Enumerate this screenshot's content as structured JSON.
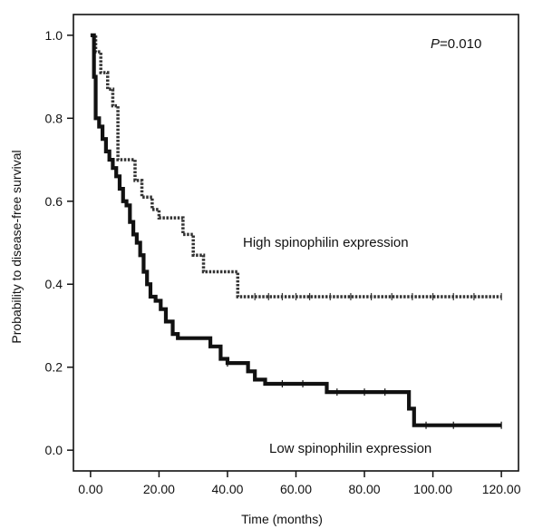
{
  "chart_data": {
    "type": "line",
    "title": "",
    "xlabel": "Time (months)",
    "ylabel": "Probability to disease-free survival",
    "xlim": [
      -5,
      125
    ],
    "ylim": [
      -0.05,
      1.05
    ],
    "x_ticks": [
      0,
      20,
      40,
      60,
      80,
      100,
      120
    ],
    "x_tick_labels": [
      "0.00",
      "20.00",
      "40.00",
      "60.00",
      "80.00",
      "100.00",
      "120.00"
    ],
    "y_ticks": [
      0.0,
      0.2,
      0.4,
      0.6,
      0.8,
      1.0
    ],
    "y_tick_labels": [
      "0.0",
      "0.2",
      "0.4",
      "0.6",
      "0.8",
      "1.0"
    ],
    "grid": false,
    "legend": "none",
    "annotations": {
      "p_value_prefix": "P",
      "p_value_rest": "=0.010",
      "high_label": "High spinophilin expression",
      "low_label": "Low spinophilin expression"
    },
    "series": [
      {
        "style": "dotted",
        "color": "#333333",
        "points": [
          [
            0.5,
            1.0
          ],
          [
            1.5,
            0.96
          ],
          [
            3,
            0.91
          ],
          [
            5,
            0.87
          ],
          [
            6.5,
            0.83
          ],
          [
            8,
            0.7
          ],
          [
            13,
            0.65
          ],
          [
            15,
            0.61
          ],
          [
            18,
            0.58
          ],
          [
            20,
            0.56
          ],
          [
            27,
            0.52
          ],
          [
            30,
            0.47
          ],
          [
            33,
            0.43
          ],
          [
            36,
            0.43
          ],
          [
            43,
            0.37
          ],
          [
            120,
            0.37
          ]
        ],
        "censor_x": [
          48,
          52,
          56,
          60,
          64,
          70,
          76,
          82,
          88,
          94,
          100,
          106,
          112,
          120
        ]
      },
      {
        "style": "solid",
        "color": "#111111",
        "points": [
          [
            0,
            1.0
          ],
          [
            1,
            0.9
          ],
          [
            1.5,
            0.8
          ],
          [
            2.5,
            0.78
          ],
          [
            3.5,
            0.75
          ],
          [
            4.5,
            0.72
          ],
          [
            5.5,
            0.7
          ],
          [
            6.5,
            0.68
          ],
          [
            7.5,
            0.66
          ],
          [
            8.5,
            0.63
          ],
          [
            9.5,
            0.6
          ],
          [
            10.5,
            0.59
          ],
          [
            11.5,
            0.55
          ],
          [
            12.5,
            0.52
          ],
          [
            13.5,
            0.5
          ],
          [
            14.5,
            0.47
          ],
          [
            15.5,
            0.43
          ],
          [
            16.5,
            0.4
          ],
          [
            17.5,
            0.37
          ],
          [
            19,
            0.36
          ],
          [
            20.5,
            0.34
          ],
          [
            22,
            0.31
          ],
          [
            24,
            0.28
          ],
          [
            25.5,
            0.27
          ],
          [
            35,
            0.25
          ],
          [
            38,
            0.22
          ],
          [
            40,
            0.21
          ],
          [
            46,
            0.19
          ],
          [
            48,
            0.17
          ],
          [
            51,
            0.16
          ],
          [
            69,
            0.14
          ],
          [
            93,
            0.1
          ],
          [
            94.5,
            0.06
          ],
          [
            120,
            0.06
          ]
        ],
        "censor_x": [
          40,
          56,
          62,
          72,
          80,
          86,
          98,
          106,
          120
        ]
      }
    ]
  }
}
